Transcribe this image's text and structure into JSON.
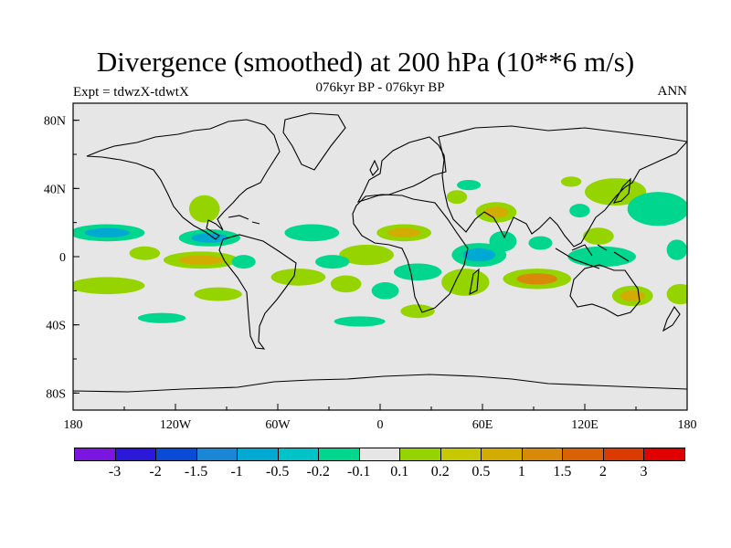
{
  "header": {
    "title": "Divergence (smoothed) at 200 hPa (10**6 m/s)",
    "subtitle": "076kyr BP - 076kyr BP",
    "left_label": "Expt = tdwzX-tdwtX",
    "right_label": "ANN"
  },
  "map": {
    "projection": "cylindrical equidistant",
    "lon_range": [
      -180,
      180
    ],
    "lat_range": [
      -90,
      90
    ],
    "background_color": "#e6e6e6",
    "lat_ticks": [
      "80N",
      "40N",
      "0",
      "40S",
      "80S"
    ],
    "lon_ticks": [
      "180",
      "120W",
      "60W",
      "0",
      "60E",
      "120E",
      "180"
    ]
  },
  "colorbar": {
    "labels": [
      "-3",
      "-2",
      "-1.5",
      "-1",
      "-0.5",
      "-0.2",
      "-0.1",
      "0.1",
      "0.2",
      "0.5",
      "1",
      "1.5",
      "2",
      "3"
    ],
    "colors": [
      "#7b16e0",
      "#2c18d8",
      "#0a4bd6",
      "#1a86d6",
      "#00a9d1",
      "#00c3c8",
      "#00d68e",
      "#e6e6e6",
      "#96d400",
      "#c8c800",
      "#d2ac00",
      "#d9890a",
      "#d96206",
      "#db3a00",
      "#e00000"
    ]
  },
  "fields": {
    "positive": [
      {
        "lon": 68,
        "lat": 26,
        "rx": 12,
        "ry": 6,
        "level": 0.5
      },
      {
        "lon": 50,
        "lat": -15,
        "rx": 14,
        "ry": 8,
        "level": 0.2
      },
      {
        "lon": 92,
        "lat": -13,
        "rx": 20,
        "ry": 6,
        "level": 1.0
      },
      {
        "lon": 128,
        "lat": 12,
        "rx": 9,
        "ry": 5,
        "level": 0.2
      },
      {
        "lon": 138,
        "lat": 38,
        "rx": 18,
        "ry": 8,
        "level": 0.2
      },
      {
        "lon": 148,
        "lat": -23,
        "rx": 12,
        "ry": 6,
        "level": 0.5
      },
      {
        "lon": 14,
        "lat": 14,
        "rx": 16,
        "ry": 5,
        "level": 0.5
      },
      {
        "lon": -8,
        "lat": 1,
        "rx": 16,
        "ry": 6,
        "level": 0.2
      },
      {
        "lon": -20,
        "lat": -16,
        "rx": 9,
        "ry": 5,
        "level": 0.2
      },
      {
        "lon": -105,
        "lat": -2,
        "rx": 22,
        "ry": 5,
        "level": 0.5
      },
      {
        "lon": -160,
        "lat": -17,
        "rx": 22,
        "ry": 5,
        "level": 0.2
      },
      {
        "lon": -95,
        "lat": -22,
        "rx": 14,
        "ry": 4,
        "level": 0.2
      },
      {
        "lon": -103,
        "lat": 28,
        "rx": 9,
        "ry": 8,
        "level": 0.2
      },
      {
        "lon": -138,
        "lat": 2,
        "rx": 9,
        "ry": 4,
        "level": 0.2
      },
      {
        "lon": -48,
        "lat": -12,
        "rx": 16,
        "ry": 5,
        "level": 0.2
      },
      {
        "lon": 22,
        "lat": -32,
        "rx": 10,
        "ry": 4,
        "level": 0.2
      },
      {
        "lon": 45,
        "lat": 35,
        "rx": 6,
        "ry": 4,
        "level": 0.2
      },
      {
        "lon": 176,
        "lat": -22,
        "rx": 8,
        "ry": 6,
        "level": 0.2
      },
      {
        "lon": 112,
        "lat": 44,
        "rx": 6,
        "ry": 3,
        "level": 0.2
      }
    ],
    "negative": [
      {
        "lon": 58,
        "lat": 1,
        "rx": 16,
        "ry": 7,
        "level": -0.5
      },
      {
        "lon": 72,
        "lat": 9,
        "rx": 8,
        "ry": 6,
        "level": -0.2
      },
      {
        "lon": 130,
        "lat": 0,
        "rx": 20,
        "ry": 6,
        "level": -0.2
      },
      {
        "lon": 163,
        "lat": 28,
        "rx": 18,
        "ry": 10,
        "level": -0.2
      },
      {
        "lon": 174,
        "lat": 4,
        "rx": 6,
        "ry": 6,
        "level": -0.2
      },
      {
        "lon": -160,
        "lat": 14,
        "rx": 22,
        "ry": 5,
        "level": -0.5
      },
      {
        "lon": -100,
        "lat": 11,
        "rx": 18,
        "ry": 5,
        "level": -0.5
      },
      {
        "lon": -40,
        "lat": 14,
        "rx": 16,
        "ry": 5,
        "level": -0.2
      },
      {
        "lon": -28,
        "lat": -3,
        "rx": 10,
        "ry": 4,
        "level": -0.2
      },
      {
        "lon": 22,
        "lat": -9,
        "rx": 14,
        "ry": 5,
        "level": -0.2
      },
      {
        "lon": 3,
        "lat": -20,
        "rx": 8,
        "ry": 5,
        "level": -0.2
      },
      {
        "lon": -80,
        "lat": -3,
        "rx": 7,
        "ry": 4,
        "level": -0.2
      },
      {
        "lon": -12,
        "lat": -38,
        "rx": 15,
        "ry": 3,
        "level": -0.2
      },
      {
        "lon": -128,
        "lat": -36,
        "rx": 14,
        "ry": 3,
        "level": -0.2
      },
      {
        "lon": 52,
        "lat": 42,
        "rx": 7,
        "ry": 3,
        "level": -0.2
      },
      {
        "lon": 117,
        "lat": 27,
        "rx": 6,
        "ry": 4,
        "level": -0.2
      },
      {
        "lon": 94,
        "lat": 8,
        "rx": 7,
        "ry": 4,
        "level": -0.2
      }
    ]
  }
}
